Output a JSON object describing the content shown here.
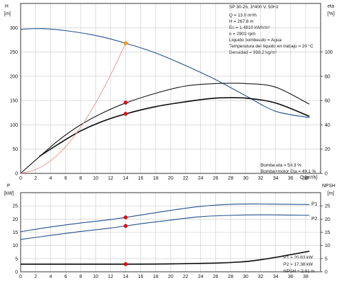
{
  "chart_data": [
    {
      "type": "line",
      "title": "SP 30-26, 3*400 V, 50Hz",
      "xlabel": "Q [m³/h]",
      "x_ticks": [
        0,
        2,
        4,
        6,
        8,
        10,
        12,
        14,
        16,
        18,
        20,
        22,
        24,
        26,
        28,
        30,
        32,
        34,
        36,
        38
      ],
      "xlim": [
        0,
        40
      ],
      "y_left": {
        "label_top": "H",
        "label_unit": "[m]",
        "ticks": [
          0,
          50,
          100,
          150,
          200,
          250,
          300
        ],
        "lim": [
          0,
          350
        ]
      },
      "y_right": {
        "label_top": "eta",
        "label_unit": "[%]",
        "ticks": [
          0,
          20,
          40,
          60,
          80,
          100
        ],
        "lim": [
          0,
          140
        ]
      },
      "series": [
        {
          "name": "",
          "axis": "left",
          "color": "#1f4e8c",
          "x": [
            0,
            3,
            6,
            10,
            14,
            18,
            22,
            26,
            30,
            34,
            38.5
          ],
          "y": [
            297,
            298,
            294,
            284,
            268,
            248,
            222,
            193,
            160,
            128,
            115
          ]
        },
        {
          "name": "",
          "axis": "right",
          "color": "#111111",
          "x": [
            0,
            2,
            5,
            8,
            11,
            14,
            18,
            22,
            26,
            30,
            34,
            38.5
          ],
          "y": [
            0,
            11,
            27,
            40,
            50,
            58,
            66,
            72,
            74,
            74,
            71,
            57
          ]
        },
        {
          "name": "",
          "axis": "right",
          "color": "#111111",
          "x": [
            2.5,
            5,
            8,
            11,
            14,
            18,
            22,
            26,
            30,
            34,
            38.5
          ],
          "y": [
            14,
            24,
            35,
            43,
            49,
            55,
            59,
            62,
            62,
            58,
            47
          ]
        },
        {
          "name": "",
          "axis": "left",
          "color": "#f08c84",
          "x": [
            0,
            2,
            4,
            6,
            8,
            10,
            12,
            14
          ],
          "y": [
            0,
            8,
            26,
            55,
            95,
            145,
            203,
            268
          ]
        }
      ],
      "markers": [
        {
          "x": 14,
          "y": 268,
          "axis": "left",
          "color": "#f0a020"
        },
        {
          "x": 14,
          "y": 58.3,
          "axis": "right",
          "color": "#e01010"
        },
        {
          "x": 14,
          "y": 49.1,
          "axis": "right",
          "color": "#e01010"
        }
      ],
      "info_lines": [
        "Q = 13.9 m³/h",
        "H = 267.8 m",
        "Es = 1.4819 kWh/m³",
        "n = 2903 rpm",
        "Líquido bombeado = Agua",
        "Temperatura del líquido en trabajo = 20 °C",
        "Densidad = 998.2 kg/m³"
      ],
      "eta_lines": [
        "Bomba eta = 58.3 %",
        "Bomba+motor Eta = 49.1 %"
      ]
    },
    {
      "type": "line",
      "xlabel": "Q [m³/h]",
      "x_ticks": [
        0,
        2,
        4,
        6,
        8,
        10,
        12,
        14,
        16,
        18,
        20,
        22,
        24,
        26,
        28,
        30,
        32,
        34,
        36,
        38
      ],
      "xlim": [
        0,
        40
      ],
      "y_left": {
        "label_top": "P",
        "label_unit": "[kW]",
        "ticks": [
          0,
          5,
          10,
          15,
          20,
          25
        ],
        "lim": [
          0,
          30
        ]
      },
      "y_right": {
        "label_top": "NPSH",
        "label_unit": "[m]",
        "ticks": [
          0,
          5,
          10,
          15,
          20,
          25
        ],
        "lim": [
          0,
          30
        ]
      },
      "series": [
        {
          "name": "P1",
          "axis": "left",
          "color": "#1f4e8c",
          "x": [
            0,
            4,
            8,
            12,
            16,
            20,
            24,
            28,
            32,
            36,
            38.5
          ],
          "y": [
            15.2,
            17,
            18.5,
            19.8,
            21.5,
            23.3,
            24.8,
            25.6,
            25.7,
            25.6,
            25.5
          ]
        },
        {
          "name": "P2",
          "axis": "left",
          "color": "#1f4e8c",
          "x": [
            0,
            4,
            8,
            12,
            16,
            20,
            24,
            28,
            32,
            36,
            38.5
          ],
          "y": [
            12.3,
            13.8,
            15.3,
            16.6,
            18.2,
            19.6,
            20.9,
            21.4,
            21.6,
            21.5,
            21.4
          ]
        },
        {
          "name": "",
          "axis": "right",
          "color": "#111111",
          "x": [
            0,
            4,
            10,
            14,
            20,
            26,
            30,
            33,
            36,
            38.5
          ],
          "y": [
            2.9,
            2.9,
            2.9,
            2.9,
            3.0,
            3.3,
            3.9,
            5.0,
            6.5,
            7.8
          ]
        }
      ],
      "markers": [
        {
          "x": 14,
          "y": 20.63,
          "axis": "left",
          "color": "#e01010"
        },
        {
          "x": 14,
          "y": 17.38,
          "axis": "left",
          "color": "#e01010"
        },
        {
          "x": 14,
          "y": 2.91,
          "axis": "right",
          "color": "#e01010"
        }
      ],
      "info_lines": [
        "P1 = 20.63 kW",
        "P2 = 17.38 kW",
        "NPSH = 2.91 m"
      ]
    }
  ]
}
